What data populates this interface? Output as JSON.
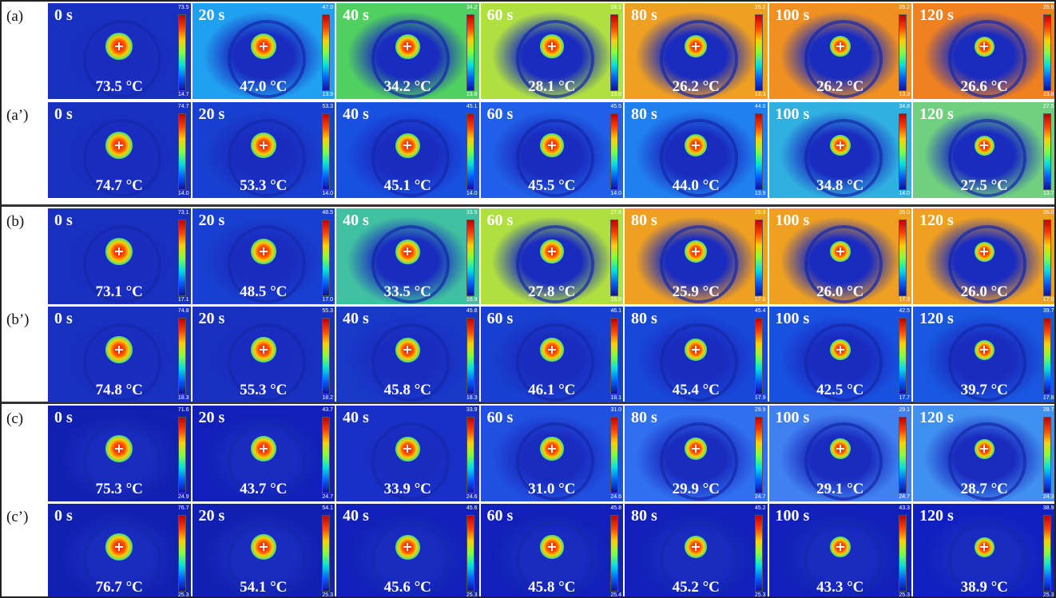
{
  "rows": [
    {
      "label": "(a)",
      "panels": [
        {
          "time": "0 s",
          "temperature": "73.5 °C",
          "scale_max": "73.5",
          "scale_min": "14.7"
        },
        {
          "time": "20 s",
          "temperature": "47.0 °C",
          "scale_max": "47.0",
          "scale_min": "13.9"
        },
        {
          "time": "40 s",
          "temperature": "34.2 °C",
          "scale_max": "34.2",
          "scale_min": "13.8"
        },
        {
          "time": "60 s",
          "temperature": "28.1 °C",
          "scale_max": "28.1",
          "scale_min": "13.6"
        },
        {
          "time": "80 s",
          "temperature": "26.2 °C",
          "scale_max": "26.2",
          "scale_min": "13.3"
        },
        {
          "time": "100 s",
          "temperature": "26.2 °C",
          "scale_max": "26.2",
          "scale_min": "13.3"
        },
        {
          "time": "120 s",
          "temperature": "26.6 °C",
          "scale_max": "26.6",
          "scale_min": "13.8"
        }
      ]
    },
    {
      "label": "(a’)",
      "panels": [
        {
          "time": "0 s",
          "temperature": "74.7 °C",
          "scale_max": "74.7",
          "scale_min": "14.0"
        },
        {
          "time": "20 s",
          "temperature": "53.3 °C",
          "scale_max": "53.3",
          "scale_min": "14.0"
        },
        {
          "time": "40 s",
          "temperature": "45.1 °C",
          "scale_max": "45.1",
          "scale_min": "14.0"
        },
        {
          "time": "60 s",
          "temperature": "45.5 °C",
          "scale_max": "45.5",
          "scale_min": "14.0"
        },
        {
          "time": "80 s",
          "temperature": "44.0 °C",
          "scale_max": "44.0",
          "scale_min": "13.9"
        },
        {
          "time": "100 s",
          "temperature": "34.8 °C",
          "scale_max": "34.8",
          "scale_min": "14.0"
        },
        {
          "time": "120 s",
          "temperature": "27.5 °C",
          "scale_max": "27.5",
          "scale_min": "13.7"
        }
      ]
    },
    {
      "label": "(b)",
      "panels": [
        {
          "time": "0 s",
          "temperature": "73.1 °C",
          "scale_max": "73.1",
          "scale_min": "17.1"
        },
        {
          "time": "20 s",
          "temperature": "48.5 °C",
          "scale_max": "48.5",
          "scale_min": "17.0"
        },
        {
          "time": "40 s",
          "temperature": "33.5 °C",
          "scale_max": "33.5",
          "scale_min": "16.9"
        },
        {
          "time": "60 s",
          "temperature": "27.8 °C",
          "scale_max": "27.8",
          "scale_min": "16.9"
        },
        {
          "time": "80 s",
          "temperature": "25.9 °C",
          "scale_max": "25.9",
          "scale_min": "17.0"
        },
        {
          "time": "100 s",
          "temperature": "26.0 °C",
          "scale_max": "26.0",
          "scale_min": "17.3"
        },
        {
          "time": "120 s",
          "temperature": "26.0 °C",
          "scale_max": "26.0",
          "scale_min": "17.0"
        }
      ]
    },
    {
      "label": "(b’)",
      "panels": [
        {
          "time": "0 s",
          "temperature": "74.8 °C",
          "scale_max": "74.8",
          "scale_min": "18.3"
        },
        {
          "time": "20 s",
          "temperature": "55.3 °C",
          "scale_max": "55.3",
          "scale_min": "18.2"
        },
        {
          "time": "40 s",
          "temperature": "45.8 °C",
          "scale_max": "45.8",
          "scale_min": "18.3"
        },
        {
          "time": "60 s",
          "temperature": "46.1 °C",
          "scale_max": "46.1",
          "scale_min": "18.1"
        },
        {
          "time": "80 s",
          "temperature": "45.4 °C",
          "scale_max": "45.4",
          "scale_min": "17.9"
        },
        {
          "time": "100 s",
          "temperature": "42.5 °C",
          "scale_max": "42.5",
          "scale_min": "17.7"
        },
        {
          "time": "120 s",
          "temperature": "39.7 °C",
          "scale_max": "39.7",
          "scale_min": "17.8"
        }
      ]
    },
    {
      "label": "(c)",
      "panels": [
        {
          "time": "0 s",
          "temperature": "75.3 °C",
          "scale_max": "71.6",
          "scale_min": "24.9"
        },
        {
          "time": "20 s",
          "temperature": "43.7 °C",
          "scale_max": "43.7",
          "scale_min": "24.7"
        },
        {
          "time": "40 s",
          "temperature": "33.9 °C",
          "scale_max": "33.9",
          "scale_min": "24.6"
        },
        {
          "time": "60 s",
          "temperature": "31.0 °C",
          "scale_max": "31.0",
          "scale_min": "24.6"
        },
        {
          "time": "80 s",
          "temperature": "29.9 °C",
          "scale_max": "29.9",
          "scale_min": "24.7"
        },
        {
          "time": "100 s",
          "temperature": "29.1 °C",
          "scale_max": "29.1",
          "scale_min": "24.7"
        },
        {
          "time": "120 s",
          "temperature": "28.7 °C",
          "scale_max": "28.7",
          "scale_min": "24.3"
        }
      ]
    },
    {
      "label": "(c’)",
      "panels": [
        {
          "time": "0 s",
          "temperature": "76.7 °C",
          "scale_max": "76.7",
          "scale_min": "25.3"
        },
        {
          "time": "20 s",
          "temperature": "54.1 °C",
          "scale_max": "54.1",
          "scale_min": "25.3"
        },
        {
          "time": "40 s",
          "temperature": "45.6 °C",
          "scale_max": "45.6",
          "scale_min": "25.3"
        },
        {
          "time": "60 s",
          "temperature": "45.8 °C",
          "scale_max": "45.8",
          "scale_min": "25.4"
        },
        {
          "time": "80 s",
          "temperature": "45.2 °C",
          "scale_max": "45.2",
          "scale_min": "25.3"
        },
        {
          "time": "100 s",
          "temperature": "43.3 °C",
          "scale_max": "43.3",
          "scale_min": "25.3"
        },
        {
          "time": "120 s",
          "temperature": "38.9 °C",
          "scale_max": "38.9",
          "scale_min": "25.3"
        }
      ]
    }
  ]
}
